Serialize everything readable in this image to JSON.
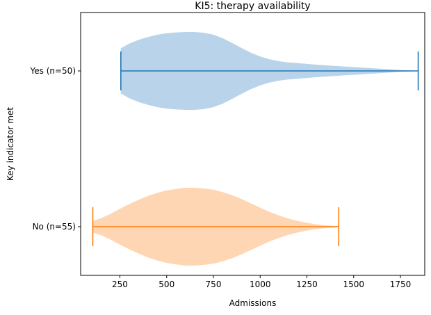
{
  "chart_data": {
    "type": "violin",
    "orientation": "horizontal",
    "title": "KI5: therapy availability",
    "xlabel": "Admissions",
    "ylabel": "Key indicator met",
    "xlim": [
      40,
      1880
    ],
    "xticks": [
      250,
      500,
      750,
      1000,
      1250,
      1500,
      1750
    ],
    "categories": [
      "No (n=55)",
      "Yes (n=50)"
    ],
    "series": [
      {
        "category": "Yes (n=50)",
        "min": 255,
        "max": 1845,
        "color": "#1f77b4",
        "fill": "#b9d4ea",
        "density": [
          [
            255,
            0.58
          ],
          [
            300,
            0.7
          ],
          [
            350,
            0.8
          ],
          [
            400,
            0.87
          ],
          [
            450,
            0.93
          ],
          [
            500,
            0.97
          ],
          [
            550,
            0.99
          ],
          [
            600,
            1.0
          ],
          [
            650,
            1.0
          ],
          [
            700,
            0.98
          ],
          [
            750,
            0.93
          ],
          [
            800,
            0.84
          ],
          [
            850,
            0.72
          ],
          [
            900,
            0.59
          ],
          [
            950,
            0.47
          ],
          [
            1000,
            0.37
          ],
          [
            1050,
            0.3
          ],
          [
            1100,
            0.25
          ],
          [
            1150,
            0.22
          ],
          [
            1200,
            0.2
          ],
          [
            1250,
            0.18
          ],
          [
            1300,
            0.16
          ],
          [
            1350,
            0.145
          ],
          [
            1400,
            0.13
          ],
          [
            1450,
            0.115
          ],
          [
            1500,
            0.1
          ],
          [
            1550,
            0.085
          ],
          [
            1600,
            0.07
          ],
          [
            1650,
            0.055
          ],
          [
            1700,
            0.04
          ],
          [
            1750,
            0.025
          ],
          [
            1800,
            0.012
          ],
          [
            1845,
            0.004
          ]
        ]
      },
      {
        "category": "No (n=55)",
        "min": 105,
        "max": 1420,
        "color": "#ff7f0e",
        "fill": "#ffd6b3",
        "density": [
          [
            105,
            0.15
          ],
          [
            150,
            0.22
          ],
          [
            200,
            0.33
          ],
          [
            250,
            0.46
          ],
          [
            300,
            0.58
          ],
          [
            350,
            0.69
          ],
          [
            400,
            0.79
          ],
          [
            450,
            0.87
          ],
          [
            500,
            0.93
          ],
          [
            550,
            0.97
          ],
          [
            600,
            1.0
          ],
          [
            650,
            1.0
          ],
          [
            700,
            0.98
          ],
          [
            750,
            0.95
          ],
          [
            800,
            0.89
          ],
          [
            850,
            0.81
          ],
          [
            900,
            0.71
          ],
          [
            950,
            0.6
          ],
          [
            1000,
            0.49
          ],
          [
            1050,
            0.38
          ],
          [
            1100,
            0.29
          ],
          [
            1150,
            0.21
          ],
          [
            1200,
            0.15
          ],
          [
            1250,
            0.1
          ],
          [
            1300,
            0.06
          ],
          [
            1350,
            0.035
          ],
          [
            1400,
            0.02
          ],
          [
            1420,
            0.015
          ]
        ]
      }
    ]
  }
}
